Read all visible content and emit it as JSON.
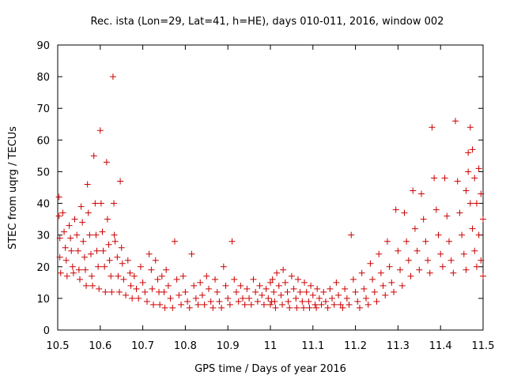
{
  "chart_data": {
    "type": "scatter",
    "title": "Rec. ista (Lon=29, Lat=41, h=HE), days 010-011, 2016, window 002",
    "xlabel": "GPS time / Days of year 2016",
    "ylabel": "STEC from uqrg / TECUs",
    "xlim": [
      10.5,
      11.5
    ],
    "ylim": [
      0,
      90
    ],
    "xticks": [
      10.5,
      10.6,
      10.7,
      10.8,
      10.9,
      11,
      11.1,
      11.2,
      11.3,
      11.4,
      11.5
    ],
    "xtick_labels": [
      "10.5",
      "10.6",
      "10.7",
      "10.8",
      "10.9",
      "11",
      "11.1",
      "11.2",
      "11.3",
      "11.4",
      "11.5"
    ],
    "yticks": [
      0,
      10,
      20,
      30,
      40,
      50,
      60,
      70,
      80,
      90
    ],
    "ytick_labels": [
      "0",
      "10",
      "20",
      "30",
      "40",
      "50",
      "60",
      "70",
      "80",
      "90"
    ],
    "grid": false,
    "legend": "none",
    "marker": "+",
    "color": "#cc0000",
    "points": [
      [
        10.503,
        42
      ],
      [
        10.503,
        36
      ],
      [
        10.505,
        29
      ],
      [
        10.505,
        23
      ],
      [
        10.507,
        18
      ],
      [
        10.512,
        37
      ],
      [
        10.515,
        31
      ],
      [
        10.518,
        26
      ],
      [
        10.52,
        22
      ],
      [
        10.522,
        17
      ],
      [
        10.527,
        33
      ],
      [
        10.53,
        29
      ],
      [
        10.532,
        25
      ],
      [
        10.535,
        20
      ],
      [
        10.537,
        18
      ],
      [
        10.54,
        35
      ],
      [
        10.545,
        30
      ],
      [
        10.548,
        25
      ],
      [
        10.55,
        19
      ],
      [
        10.552,
        16
      ],
      [
        10.555,
        39
      ],
      [
        10.558,
        34
      ],
      [
        10.56,
        28
      ],
      [
        10.563,
        23
      ],
      [
        10.565,
        19
      ],
      [
        10.567,
        14
      ],
      [
        10.57,
        46
      ],
      [
        10.572,
        37
      ],
      [
        10.575,
        30
      ],
      [
        10.578,
        24
      ],
      [
        10.58,
        17
      ],
      [
        10.582,
        14
      ],
      [
        10.585,
        55
      ],
      [
        10.588,
        40
      ],
      [
        10.59,
        30
      ],
      [
        10.592,
        25
      ],
      [
        10.595,
        20
      ],
      [
        10.597,
        13
      ],
      [
        10.6,
        63
      ],
      [
        10.602,
        40
      ],
      [
        10.605,
        31
      ],
      [
        10.607,
        25
      ],
      [
        10.61,
        20
      ],
      [
        10.612,
        12
      ],
      [
        10.615,
        53
      ],
      [
        10.617,
        35
      ],
      [
        10.62,
        27
      ],
      [
        10.622,
        22
      ],
      [
        10.625,
        17
      ],
      [
        10.627,
        12
      ],
      [
        10.63,
        80
      ],
      [
        10.632,
        40
      ],
      [
        10.633,
        30
      ],
      [
        10.635,
        28
      ],
      [
        10.64,
        23
      ],
      [
        10.642,
        17
      ],
      [
        10.645,
        12
      ],
      [
        10.647,
        47
      ],
      [
        10.65,
        26
      ],
      [
        10.652,
        21
      ],
      [
        10.655,
        16
      ],
      [
        10.66,
        11
      ],
      [
        10.665,
        22
      ],
      [
        10.67,
        18
      ],
      [
        10.672,
        14
      ],
      [
        10.675,
        10
      ],
      [
        10.68,
        17
      ],
      [
        10.685,
        13
      ],
      [
        10.69,
        10
      ],
      [
        10.695,
        20
      ],
      [
        10.7,
        15
      ],
      [
        10.705,
        12
      ],
      [
        10.71,
        9
      ],
      [
        10.715,
        24
      ],
      [
        10.72,
        19
      ],
      [
        10.722,
        13
      ],
      [
        10.725,
        8
      ],
      [
        10.73,
        22
      ],
      [
        10.735,
        16
      ],
      [
        10.738,
        12
      ],
      [
        10.74,
        8
      ],
      [
        10.745,
        17
      ],
      [
        10.75,
        12
      ],
      [
        10.752,
        7
      ],
      [
        10.755,
        19
      ],
      [
        10.76,
        14
      ],
      [
        10.765,
        10
      ],
      [
        10.77,
        7
      ],
      [
        10.775,
        28
      ],
      [
        10.78,
        16
      ],
      [
        10.785,
        11
      ],
      [
        10.79,
        8
      ],
      [
        10.795,
        17
      ],
      [
        10.8,
        12
      ],
      [
        10.805,
        9
      ],
      [
        10.81,
        7
      ],
      [
        10.815,
        24
      ],
      [
        10.82,
        14
      ],
      [
        10.825,
        10
      ],
      [
        10.83,
        8
      ],
      [
        10.835,
        15
      ],
      [
        10.84,
        11
      ],
      [
        10.845,
        8
      ],
      [
        10.85,
        17
      ],
      [
        10.855,
        13
      ],
      [
        10.86,
        9
      ],
      [
        10.865,
        7
      ],
      [
        10.87,
        16
      ],
      [
        10.875,
        12
      ],
      [
        10.88,
        9
      ],
      [
        10.885,
        7
      ],
      [
        10.89,
        20
      ],
      [
        10.895,
        14
      ],
      [
        10.9,
        10
      ],
      [
        10.905,
        8
      ],
      [
        10.91,
        28
      ],
      [
        10.915,
        16
      ],
      [
        10.92,
        12
      ],
      [
        10.925,
        9
      ],
      [
        10.93,
        14
      ],
      [
        10.935,
        10
      ],
      [
        10.94,
        8
      ],
      [
        10.945,
        13
      ],
      [
        10.95,
        10
      ],
      [
        10.955,
        8
      ],
      [
        10.96,
        16
      ],
      [
        10.965,
        12
      ],
      [
        10.97,
        9
      ],
      [
        10.975,
        14
      ],
      [
        10.98,
        11
      ],
      [
        10.985,
        8
      ],
      [
        10.99,
        13
      ],
      [
        10.995,
        10
      ],
      [
        11.0,
        8
      ],
      [
        11.0,
        15
      ],
      [
        11.003,
        9
      ],
      [
        11.005,
        16
      ],
      [
        11.008,
        12
      ],
      [
        11.01,
        9
      ],
      [
        11.012,
        7
      ],
      [
        11.015,
        18
      ],
      [
        11.02,
        14
      ],
      [
        11.025,
        11
      ],
      [
        11.028,
        8
      ],
      [
        11.03,
        19
      ],
      [
        11.035,
        15
      ],
      [
        11.04,
        12
      ],
      [
        11.042,
        9
      ],
      [
        11.045,
        7
      ],
      [
        11.05,
        17
      ],
      [
        11.055,
        13
      ],
      [
        11.06,
        10
      ],
      [
        11.062,
        7
      ],
      [
        11.065,
        16
      ],
      [
        11.07,
        12
      ],
      [
        11.075,
        9
      ],
      [
        11.078,
        7
      ],
      [
        11.08,
        15
      ],
      [
        11.085,
        12
      ],
      [
        11.09,
        9
      ],
      [
        11.092,
        7
      ],
      [
        11.095,
        14
      ],
      [
        11.1,
        11
      ],
      [
        11.105,
        8
      ],
      [
        11.108,
        7
      ],
      [
        11.11,
        13
      ],
      [
        11.115,
        10
      ],
      [
        11.12,
        8
      ],
      [
        11.125,
        12
      ],
      [
        11.13,
        9
      ],
      [
        11.135,
        7
      ],
      [
        11.14,
        13
      ],
      [
        11.145,
        10
      ],
      [
        11.15,
        8
      ],
      [
        11.155,
        15
      ],
      [
        11.16,
        11
      ],
      [
        11.165,
        8
      ],
      [
        11.17,
        7
      ],
      [
        11.175,
        13
      ],
      [
        11.18,
        10
      ],
      [
        11.185,
        8
      ],
      [
        11.19,
        30
      ],
      [
        11.195,
        16
      ],
      [
        11.2,
        12
      ],
      [
        11.205,
        9
      ],
      [
        11.21,
        7
      ],
      [
        11.215,
        18
      ],
      [
        11.22,
        13
      ],
      [
        11.225,
        10
      ],
      [
        11.23,
        8
      ],
      [
        11.235,
        21
      ],
      [
        11.24,
        16
      ],
      [
        11.245,
        12
      ],
      [
        11.25,
        9
      ],
      [
        11.255,
        24
      ],
      [
        11.26,
        18
      ],
      [
        11.265,
        14
      ],
      [
        11.27,
        11
      ],
      [
        11.275,
        28
      ],
      [
        11.28,
        20
      ],
      [
        11.285,
        15
      ],
      [
        11.29,
        12
      ],
      [
        11.295,
        38
      ],
      [
        11.3,
        25
      ],
      [
        11.305,
        19
      ],
      [
        11.31,
        14
      ],
      [
        11.315,
        37
      ],
      [
        11.32,
        28
      ],
      [
        11.325,
        22
      ],
      [
        11.33,
        17
      ],
      [
        11.335,
        44
      ],
      [
        11.34,
        32
      ],
      [
        11.345,
        25
      ],
      [
        11.35,
        19
      ],
      [
        11.355,
        43
      ],
      [
        11.36,
        35
      ],
      [
        11.365,
        28
      ],
      [
        11.37,
        22
      ],
      [
        11.375,
        18
      ],
      [
        11.38,
        64
      ],
      [
        11.385,
        48
      ],
      [
        11.39,
        38
      ],
      [
        11.395,
        30
      ],
      [
        11.4,
        24
      ],
      [
        11.405,
        20
      ],
      [
        11.41,
        48
      ],
      [
        11.415,
        36
      ],
      [
        11.42,
        28
      ],
      [
        11.425,
        22
      ],
      [
        11.43,
        18
      ],
      [
        11.435,
        66
      ],
      [
        11.44,
        47
      ],
      [
        11.445,
        37
      ],
      [
        11.45,
        30
      ],
      [
        11.455,
        24
      ],
      [
        11.46,
        19
      ],
      [
        11.465,
        50
      ],
      [
        11.47,
        40
      ],
      [
        11.475,
        32
      ],
      [
        11.48,
        25
      ],
      [
        11.485,
        20
      ],
      [
        11.49,
        51
      ],
      [
        11.495,
        43
      ],
      [
        11.5,
        35
      ],
      [
        11.46,
        44
      ],
      [
        11.465,
        56
      ],
      [
        11.47,
        64
      ],
      [
        11.475,
        57
      ],
      [
        11.48,
        48
      ],
      [
        11.485,
        40
      ],
      [
        11.49,
        30
      ],
      [
        11.495,
        22
      ],
      [
        11.5,
        17
      ]
    ]
  }
}
